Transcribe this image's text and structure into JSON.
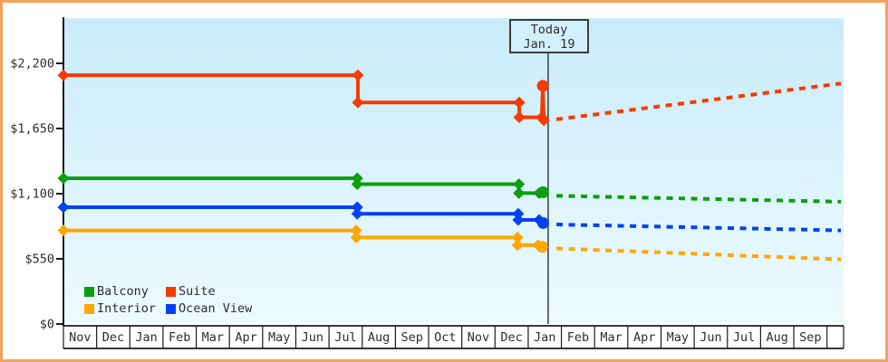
{
  "today_box": {
    "line1": "Today",
    "line2": "Jan. 19"
  },
  "colors": {
    "frame_border": "#f0a35c",
    "plot_top": "#c9ecfa",
    "plot_bottom": "#edfaff",
    "axis": "#1b1b1b",
    "text": "#2e2e2e",
    "today_line": "#3c3c3c",
    "today_box_bg": "#d2effc",
    "suite": "#f43b00",
    "balcony": "#0a9f0e",
    "interior": "#ffa700",
    "ocean_view": "#0442ef"
  },
  "legend": {
    "items": [
      {
        "label": "Balcony",
        "color": "#0a9f0e"
      },
      {
        "label": "Suite",
        "color": "#f43b00"
      },
      {
        "label": "Interior",
        "color": "#ffa700"
      },
      {
        "label": "Ocean View",
        "color": "#0442ef"
      }
    ]
  },
  "chart_data": {
    "type": "line",
    "title": "",
    "xlabel": "",
    "ylabel": "",
    "ylim": [
      0,
      2200
    ],
    "xlim": [
      0,
      23.5
    ],
    "grid": false,
    "legend_position": "bottom-left-inside",
    "y_ticks": [
      {
        "label": "$0",
        "value": 0
      },
      {
        "label": "$550",
        "value": 550
      },
      {
        "label": "$1,100",
        "value": 1100
      },
      {
        "label": "$1,650",
        "value": 1650
      },
      {
        "label": "$2,200",
        "value": 2200
      }
    ],
    "x_months": [
      "Nov",
      "Dec",
      "Jan",
      "Feb",
      "Mar",
      "Apr",
      "May",
      "Jun",
      "Jul",
      "Aug",
      "Sep",
      "Oct",
      "Nov",
      "Dec",
      "Jan",
      "Feb",
      "Mar",
      "Apr",
      "May",
      "Jun",
      "Jul",
      "Aug",
      "Sep"
    ],
    "today_x": 14.6,
    "series": [
      {
        "name": "Suite",
        "color": "#f43b00",
        "solid": [
          [
            0,
            2100
          ],
          [
            8.87,
            2100
          ],
          [
            8.87,
            1870
          ],
          [
            13.73,
            1870
          ],
          [
            13.73,
            1745
          ],
          [
            14.41,
            1745
          ],
          [
            14.44,
            2010
          ],
          [
            14.47,
            1720
          ]
        ],
        "diamonds": [
          [
            0,
            2100
          ],
          [
            8.87,
            2100
          ],
          [
            8.87,
            1870
          ],
          [
            13.73,
            1870
          ],
          [
            13.73,
            1745
          ],
          [
            14.41,
            1745
          ],
          [
            14.47,
            1720
          ]
        ],
        "dots": [
          [
            14.44,
            2010
          ]
        ],
        "dotted": [
          [
            14.85,
            1727
          ],
          [
            23.42,
            2030
          ]
        ]
      },
      {
        "name": "Balcony",
        "color": "#0a9f0e",
        "solid": [
          [
            0,
            1230
          ],
          [
            8.85,
            1230
          ],
          [
            8.85,
            1180
          ],
          [
            13.72,
            1180
          ],
          [
            13.72,
            1105
          ],
          [
            14.33,
            1105
          ],
          [
            14.45,
            1112
          ]
        ],
        "diamonds": [
          [
            0,
            1230
          ],
          [
            8.85,
            1230
          ],
          [
            8.85,
            1180
          ],
          [
            13.72,
            1180
          ],
          [
            13.72,
            1105
          ],
          [
            14.33,
            1105
          ]
        ],
        "dots": [
          [
            14.45,
            1112
          ]
        ],
        "dotted": [
          [
            14.85,
            1082
          ],
          [
            23.42,
            1032
          ]
        ]
      },
      {
        "name": "Ocean View",
        "color": "#0442ef",
        "solid": [
          [
            0,
            985
          ],
          [
            8.85,
            985
          ],
          [
            8.85,
            930
          ],
          [
            13.7,
            930
          ],
          [
            13.7,
            878
          ],
          [
            14.33,
            878
          ],
          [
            14.45,
            852
          ]
        ],
        "diamonds": [
          [
            0,
            985
          ],
          [
            8.85,
            985
          ],
          [
            8.85,
            930
          ],
          [
            13.7,
            930
          ],
          [
            13.7,
            878
          ],
          [
            14.33,
            878
          ]
        ],
        "dots": [
          [
            14.45,
            852
          ]
        ],
        "dotted": [
          [
            14.85,
            840
          ],
          [
            23.42,
            790
          ]
        ]
      },
      {
        "name": "Interior",
        "color": "#ffa700",
        "solid": [
          [
            0,
            790
          ],
          [
            8.82,
            790
          ],
          [
            8.82,
            730
          ],
          [
            13.68,
            730
          ],
          [
            13.68,
            666
          ],
          [
            14.3,
            666
          ],
          [
            14.42,
            651
          ]
        ],
        "diamonds": [
          [
            0,
            790
          ],
          [
            8.82,
            790
          ],
          [
            8.82,
            730
          ],
          [
            13.68,
            730
          ],
          [
            13.68,
            666
          ],
          [
            14.3,
            666
          ]
        ],
        "dots": [
          [
            14.42,
            651
          ]
        ],
        "dotted": [
          [
            14.85,
            638
          ],
          [
            23.42,
            545
          ]
        ]
      }
    ]
  }
}
